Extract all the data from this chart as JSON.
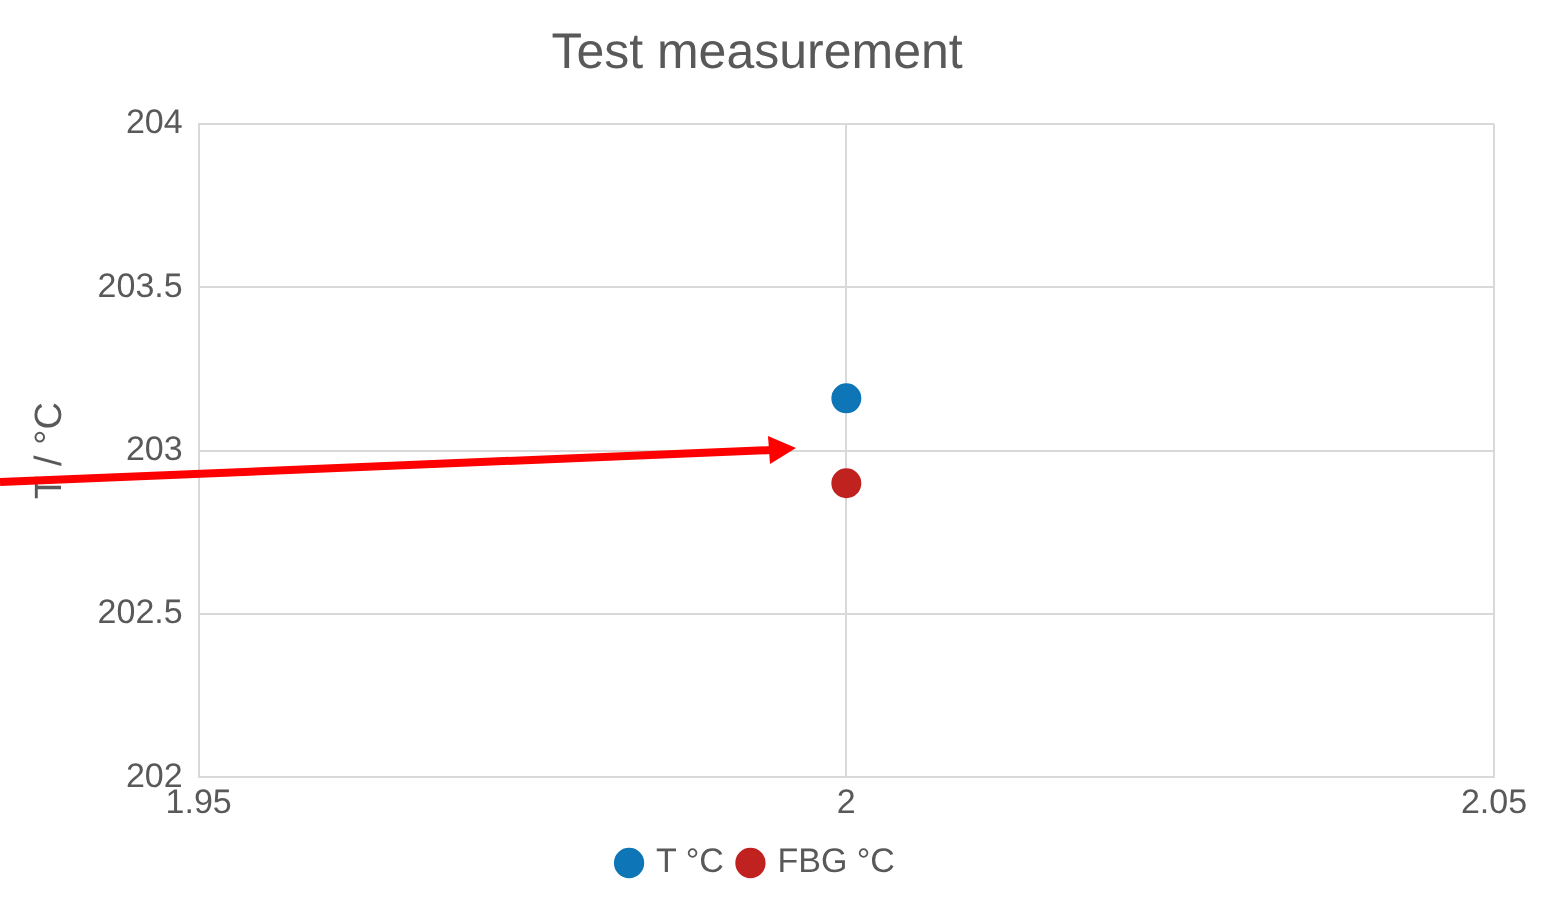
{
  "chart_data": {
    "type": "scatter",
    "title": "Test measurement",
    "ylabel": "T / °C",
    "x": [
      2
    ],
    "series": [
      {
        "name": "T °C",
        "color": "#0e75b6",
        "values": [
          203.16
        ]
      },
      {
        "name": "FBG °C",
        "color": "#c0221f",
        "values": [
          202.9
        ]
      }
    ],
    "xlim": [
      1.95,
      2.05
    ],
    "xticks": [
      1.95,
      2,
      2.05
    ],
    "ylim": [
      202,
      204
    ],
    "yticks": [
      202,
      202.5,
      203,
      203.5,
      204
    ],
    "grid": true,
    "legend": "bottom",
    "marker": "circle"
  }
}
